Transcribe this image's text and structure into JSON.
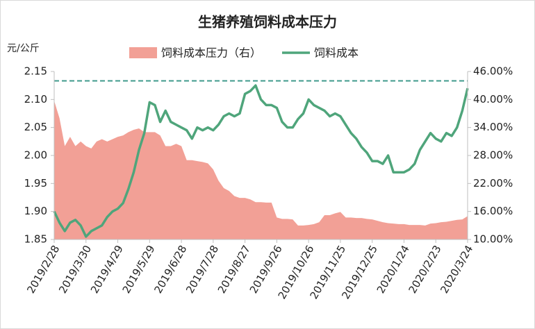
{
  "chart_data": {
    "type": "line",
    "title": "生猪养殖饲料成本压力",
    "ylabel": "元/公斤",
    "categories": [
      "2019/2/28",
      null,
      null,
      null,
      null,
      null,
      "2019/3/30",
      null,
      null,
      null,
      null,
      null,
      "2019/4/29",
      null,
      null,
      null,
      null,
      null,
      "2019/5/29",
      null,
      null,
      null,
      null,
      null,
      "2019/6/28",
      null,
      null,
      null,
      null,
      null,
      "2019/7/28",
      null,
      null,
      null,
      null,
      null,
      "2019/8/27",
      null,
      null,
      null,
      null,
      null,
      "2019/9/26",
      null,
      null,
      null,
      null,
      null,
      "2019/10/26",
      null,
      null,
      null,
      null,
      null,
      "2019/11/25",
      null,
      null,
      null,
      null,
      null,
      "2019/12/25",
      null,
      null,
      null,
      null,
      null,
      "2020/1/24",
      null,
      null,
      null,
      null,
      null,
      "2020/2/23",
      null,
      null,
      null,
      null,
      null,
      "2020/3/24"
    ],
    "series": [
      {
        "name": "饲料成本压力（右）",
        "type": "area",
        "axis": "y2",
        "color": "#f2a096",
        "values": [
          39.7,
          36,
          30,
          32,
          30,
          31,
          30,
          29.5,
          31,
          31.5,
          31,
          31.5,
          32,
          32.3,
          33,
          33.5,
          33.8,
          33,
          33,
          33,
          32.3,
          30,
          30,
          30.5,
          30,
          27,
          27,
          26.8,
          26.6,
          26.3,
          25,
          22.6,
          21,
          20.4,
          19.3,
          18.9,
          18.9,
          18.6,
          18,
          18,
          17.9,
          17.9,
          14.7,
          14.4,
          14.4,
          14.3,
          13,
          13,
          13.1,
          13.3,
          13.7,
          15.2,
          15.2,
          15.6,
          15.9,
          14.7,
          14.7,
          14.6,
          14.6,
          14.4,
          14.3,
          14,
          13.7,
          13.5,
          13.4,
          13.3,
          13.3,
          13.1,
          13.1,
          13.1,
          13,
          13.4,
          13.5,
          13.7,
          13.8,
          14,
          14.2,
          14.3,
          15
        ]
      },
      {
        "name": "饲料成本",
        "type": "line",
        "color": "#4fa57b",
        "values": [
          1.9,
          1.88,
          1.865,
          1.88,
          1.885,
          1.875,
          1.855,
          1.865,
          1.87,
          1.875,
          1.89,
          1.9,
          1.905,
          1.915,
          1.94,
          1.97,
          2.01,
          2.04,
          2.095,
          2.09,
          2.06,
          2.08,
          2.06,
          2.055,
          2.05,
          2.045,
          2.03,
          2.05,
          2.045,
          2.05,
          2.045,
          2.055,
          2.07,
          2.075,
          2.07,
          2.075,
          2.11,
          2.115,
          2.125,
          2.1,
          2.09,
          2.09,
          2.085,
          2.06,
          2.05,
          2.05,
          2.065,
          2.075,
          2.1,
          2.09,
          2.085,
          2.08,
          2.07,
          2.075,
          2.07,
          2.055,
          2.04,
          2.03,
          2.015,
          2.005,
          1.99,
          1.99,
          1.985,
          2.0,
          1.97,
          1.97,
          1.97,
          1.975,
          1.985,
          2.01,
          2.025,
          2.04,
          2.03,
          2.025,
          2.04,
          2.035,
          2.05,
          2.08,
          2.12
        ]
      }
    ],
    "ylim": [
      1.85,
      2.15
    ],
    "yticks": [
      1.85,
      {
        "value": 1.9,
        "label": "1.90"
      },
      1.95,
      {
        "value": 2.0,
        "label": "2.00"
      },
      2.05,
      {
        "value": 2.1,
        "label": "2.10"
      },
      2.15
    ],
    "y2lim": [
      10,
      46
    ],
    "y2ticks": [
      {
        "value": 10,
        "label": "10.00%"
      },
      {
        "value": 16,
        "label": "16.00%"
      },
      {
        "value": 22,
        "label": "22.00%"
      },
      {
        "value": 28,
        "label": "28.00%"
      },
      {
        "value": 34,
        "label": "34.00%"
      },
      {
        "value": 40,
        "label": "40.00%"
      },
      {
        "value": 46,
        "label": "46.00%"
      }
    ],
    "reference_line": {
      "value": 44,
      "axis": "y2",
      "color": "#3f9a8c"
    }
  }
}
